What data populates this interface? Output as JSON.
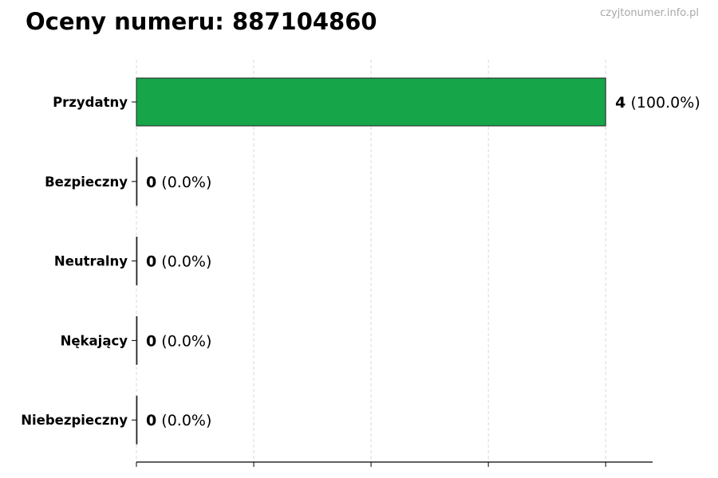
{
  "chart_data": {
    "type": "bar",
    "orientation": "horizontal",
    "title": "Oceny numeru: 887104860",
    "watermark": "czyjtonumer.info.pl",
    "categories": [
      "Przydatny",
      "Bezpieczny",
      "Neutralny",
      "Nękający",
      "Niebezpieczny"
    ],
    "values": [
      4,
      0,
      0,
      0,
      0
    ],
    "percent_labels": [
      "(100.0%)",
      "(0.0%)",
      "(0.0%)",
      "(0.0%)",
      "(0.0%)"
    ],
    "bar_colors": [
      "#17a54a",
      "#17a54a",
      "#17a54a",
      "#17a54a",
      "#17a54a"
    ],
    "xlim": [
      0,
      4.4
    ],
    "x_ticks": [
      0,
      1,
      2,
      3,
      4
    ],
    "x_tick_labels_shown": false,
    "grid": "vertical dashed",
    "xlabel": "",
    "ylabel": ""
  }
}
